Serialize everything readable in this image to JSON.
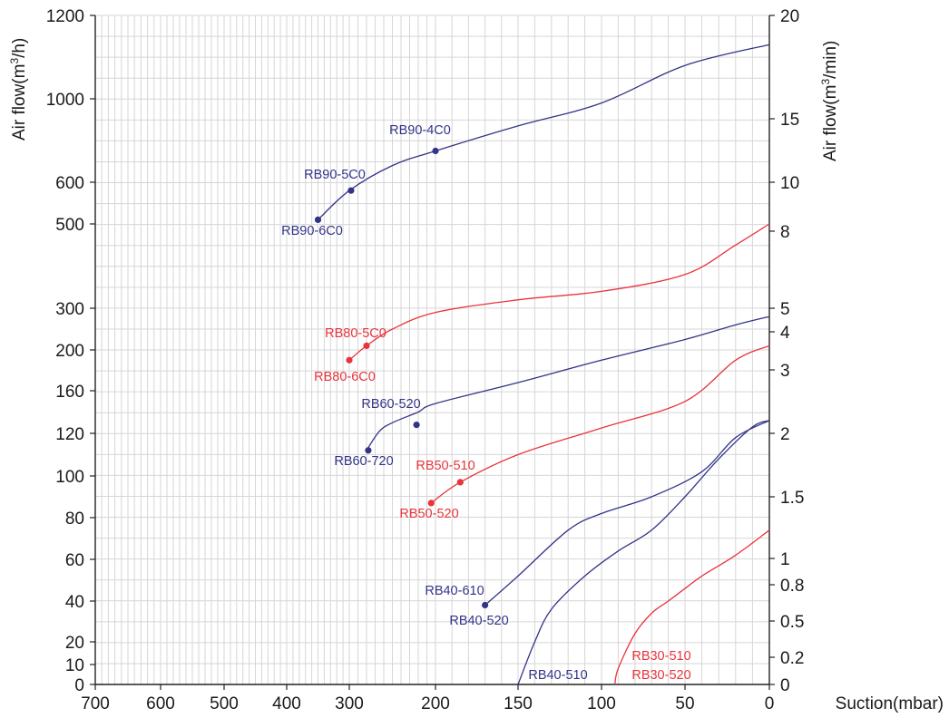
{
  "chart_data": {
    "type": "line",
    "xlabel": "Suction(mbar)",
    "ylabel_left": "Air flow(m³/h)",
    "ylabel_right": "Air flow(m³/min)",
    "x_ticks": [
      "700",
      "600",
      "500",
      "400",
      "300",
      "200",
      "150",
      "100",
      "50",
      "0"
    ],
    "y_left_ticks": [
      "0",
      "10",
      "20",
      "40",
      "60",
      "80",
      "100",
      "120",
      "160",
      "200",
      "300",
      "500",
      "600",
      "1000",
      "1200"
    ],
    "y_right_ticks": [
      "0",
      "0.2",
      "0.5",
      "0.8",
      "1",
      "1.5",
      "2",
      "3",
      "4",
      "5",
      "8",
      "10",
      "15",
      "20"
    ],
    "grid": true,
    "colors": {
      "blue": "#333388",
      "red": "#e8343a"
    },
    "series": [
      {
        "name": "RB90",
        "color": "blue",
        "x": [
          350,
          300,
          250,
          200,
          150,
          100,
          50,
          0
        ],
        "y": [
          510,
          580,
          680,
          750,
          870,
          980,
          1080,
          1130
        ]
      },
      {
        "name": "RB80",
        "color": "red",
        "x": [
          300,
          280,
          250,
          200,
          150,
          100,
          50,
          20,
          0
        ],
        "y": [
          190,
          210,
          250,
          290,
          320,
          340,
          380,
          450,
          500
        ]
      },
      {
        "name": "RB60",
        "color": "blue",
        "x": [
          280,
          265,
          250,
          220,
          200,
          150,
          100,
          50,
          20,
          0
        ],
        "y": [
          112,
          122,
          130,
          140,
          148,
          168,
          190,
          225,
          260,
          280
        ]
      },
      {
        "name": "RB50",
        "color": "red",
        "x": [
          205,
          185,
          150,
          100,
          50,
          20,
          0
        ],
        "y": [
          87,
          97,
          110,
          125,
          150,
          190,
          210
        ]
      },
      {
        "name": "RB40-610",
        "color": "blue",
        "x": [
          170,
          150,
          120,
          100,
          70,
          40,
          20,
          0
        ],
        "y": [
          38,
          52,
          74,
          82,
          90,
          102,
          118,
          132
        ]
      },
      {
        "name": "RB40-510",
        "color": "blue",
        "x": [
          150,
          140,
          130,
          110,
          90,
          70,
          50,
          30,
          10,
          0
        ],
        "y": [
          0,
          20,
          36,
          52,
          64,
          74,
          90,
          108,
          126,
          132
        ]
      },
      {
        "name": "RB30",
        "color": "red",
        "x": [
          92,
          90,
          80,
          70,
          60,
          50,
          40,
          20,
          0
        ],
        "y": [
          0,
          8,
          24,
          34,
          40,
          46,
          52,
          62,
          74
        ]
      }
    ],
    "points": [
      {
        "label": "RB90-4C0",
        "color": "blue",
        "x": 200,
        "y": 750
      },
      {
        "label": "RB90-5C0",
        "color": "blue",
        "x": 298,
        "y": 580
      },
      {
        "label": "RB90-6C0",
        "color": "blue",
        "x": 350,
        "y": 510
      },
      {
        "label": "RB80-5C0",
        "color": "red",
        "x": 280,
        "y": 210
      },
      {
        "label": "RB80-6C0",
        "color": "red",
        "x": 300,
        "y": 190
      },
      {
        "label": "RB60-520",
        "color": "blue",
        "x": 222,
        "y": 128
      },
      {
        "label": "RB60-720",
        "color": "blue",
        "x": 278,
        "y": 112
      },
      {
        "label": "RB50-510",
        "color": "red",
        "x": 185,
        "y": 97
      },
      {
        "label": "RB50-520",
        "color": "red",
        "x": 205,
        "y": 87
      },
      {
        "label": "RB40-610",
        "color": "blue",
        "x": 170,
        "y": 38
      }
    ],
    "curve_labels": [
      {
        "label": "RB40-520",
        "color": "blue"
      },
      {
        "label": "RB40-510",
        "color": "blue"
      },
      {
        "label": "RB30-510",
        "color": "red"
      },
      {
        "label": "RB30-520",
        "color": "red"
      }
    ]
  }
}
